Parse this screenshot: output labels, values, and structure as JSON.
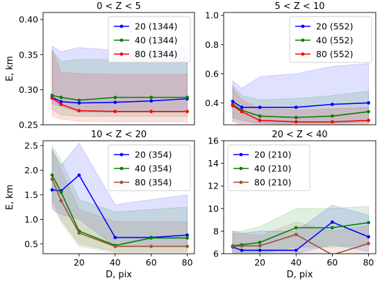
{
  "chart_data": [
    {
      "type": "line",
      "title": "0 < Z < 5",
      "xlabel": "",
      "ylabel": "E, km",
      "xlim": [
        0,
        84
      ],
      "ylim": [
        0.25,
        0.41
      ],
      "xticks": [],
      "xtick_labels": [],
      "yticks": [
        0.25,
        0.3,
        0.35,
        0.4
      ],
      "ytick_labels": [
        "0.25",
        "0.30",
        "0.35",
        "0.40"
      ],
      "grid": false,
      "legend_position": "top-right",
      "x": [
        5,
        10,
        20,
        40,
        60,
        80
      ],
      "series": [
        {
          "name": "20 (1344)",
          "color": "#0000ff",
          "values": [
            0.289,
            0.283,
            0.281,
            0.282,
            0.284,
            0.287
          ],
          "band_low": [
            0.28,
            0.276,
            0.268,
            0.268,
            0.268,
            0.268
          ],
          "band_high": [
            0.362,
            0.354,
            0.36,
            0.356,
            0.357,
            0.36
          ]
        },
        {
          "name": "40 (1344)",
          "color": "#008000",
          "values": [
            0.292,
            0.289,
            0.285,
            0.289,
            0.289,
            0.289
          ],
          "band_low": [
            0.272,
            0.264,
            0.262,
            0.262,
            0.262,
            0.262
          ],
          "band_high": [
            0.356,
            0.34,
            0.343,
            0.343,
            0.343,
            0.345
          ]
        },
        {
          "name": "80 (1344)",
          "color": "#ff0000",
          "values": [
            0.288,
            0.279,
            0.27,
            0.269,
            0.269,
            0.269
          ],
          "band_low": [
            0.262,
            0.258,
            0.255,
            0.254,
            0.254,
            0.254
          ],
          "band_high": [
            0.356,
            0.325,
            0.323,
            0.322,
            0.322,
            0.322
          ]
        }
      ]
    },
    {
      "type": "line",
      "title": "5 < Z < 10",
      "xlabel": "",
      "ylabel": "",
      "xlim": [
        0,
        84
      ],
      "ylim": [
        0.25,
        1.02
      ],
      "xticks": [],
      "xtick_labels": [],
      "yticks": [
        0.4,
        0.6,
        0.8,
        1.0
      ],
      "ytick_labels": [
        "0.4",
        "0.6",
        "0.8",
        "1.0"
      ],
      "grid": false,
      "legend_position": "top-right",
      "x": [
        5,
        10,
        20,
        40,
        60,
        80
      ],
      "series": [
        {
          "name": "20 (552)",
          "color": "#0000ff",
          "values": [
            0.41,
            0.37,
            0.37,
            0.37,
            0.39,
            0.4
          ],
          "band_low": [
            0.3,
            0.28,
            0.26,
            0.26,
            0.26,
            0.27
          ],
          "band_high": [
            0.55,
            0.5,
            0.58,
            0.6,
            0.65,
            0.67
          ]
        },
        {
          "name": "40 (552)",
          "color": "#008000",
          "values": [
            0.39,
            0.35,
            0.31,
            0.3,
            0.31,
            0.34
          ],
          "band_low": [
            0.28,
            0.26,
            0.26,
            0.25,
            0.25,
            0.25
          ],
          "band_high": [
            0.52,
            0.45,
            0.42,
            0.43,
            0.45,
            0.48
          ]
        },
        {
          "name": "80 (552)",
          "color": "#ff0000",
          "values": [
            0.38,
            0.34,
            0.28,
            0.27,
            0.27,
            0.28
          ],
          "band_low": [
            0.27,
            0.25,
            0.24,
            0.24,
            0.24,
            0.24
          ],
          "band_high": [
            0.5,
            0.42,
            0.36,
            0.35,
            0.36,
            0.37
          ]
        }
      ]
    },
    {
      "type": "line",
      "title": "10 < Z < 20",
      "xlabel": "D, pix",
      "ylabel": "E, km",
      "xlim": [
        0,
        84
      ],
      "ylim": [
        0.3,
        2.6
      ],
      "xticks": [
        20,
        40,
        60,
        80
      ],
      "xtick_labels": [
        "20",
        "40",
        "60",
        "80"
      ],
      "yticks": [
        0.5,
        1.0,
        1.5,
        2.0,
        2.5
      ],
      "ytick_labels": [
        "0.5",
        "1.0",
        "1.5",
        "2.0",
        "2.5"
      ],
      "grid": false,
      "legend_position": "top-right",
      "x": [
        5,
        10,
        20,
        40,
        60,
        80
      ],
      "series": [
        {
          "name": "20 (354)",
          "color": "#0000ff",
          "values": [
            1.6,
            1.58,
            1.9,
            0.63,
            0.63,
            0.68
          ],
          "band_low": [
            1.2,
            1.1,
            1.0,
            0.45,
            0.45,
            0.45
          ],
          "band_high": [
            2.4,
            2.1,
            2.55,
            1.3,
            1.4,
            1.5
          ]
        },
        {
          "name": "40 (354)",
          "color": "#008000",
          "values": [
            1.9,
            1.55,
            0.76,
            0.47,
            0.62,
            0.62
          ],
          "band_low": [
            1.4,
            1.0,
            0.5,
            0.35,
            0.35,
            0.35
          ],
          "band_high": [
            2.5,
            2.2,
            1.4,
            1.15,
            1.2,
            1.25
          ]
        },
        {
          "name": "80 (354)",
          "color": "#a0522d",
          "values": [
            1.82,
            1.38,
            0.72,
            0.45,
            0.45,
            0.45
          ],
          "band_low": [
            1.3,
            0.95,
            0.45,
            0.32,
            0.32,
            0.32
          ],
          "band_high": [
            2.45,
            2.0,
            1.2,
            0.95,
            0.95,
            0.95
          ]
        }
      ]
    },
    {
      "type": "line",
      "title": "20 < Z < 40",
      "xlabel": "D, pix",
      "ylabel": "",
      "xlim": [
        0,
        84
      ],
      "ylim": [
        6,
        16
      ],
      "xticks": [
        20,
        40,
        60,
        80
      ],
      "xtick_labels": [
        "20",
        "40",
        "60",
        "80"
      ],
      "yticks": [
        6,
        8,
        10,
        12,
        14,
        16
      ],
      "ytick_labels": [
        "6",
        "8",
        "10",
        "12",
        "14",
        "16"
      ],
      "grid": false,
      "legend_position": "top-left",
      "x": [
        5,
        10,
        20,
        40,
        60,
        80
      ],
      "series": [
        {
          "name": "20 (210)",
          "color": "#0000ff",
          "values": [
            6.6,
            6.3,
            6.3,
            6.3,
            8.8,
            7.5
          ],
          "band_low": [
            6.0,
            6.0,
            6.0,
            6.0,
            6.8,
            6.2
          ],
          "band_high": [
            8.0,
            7.8,
            8.0,
            8.0,
            10.3,
            9.4
          ]
        },
        {
          "name": "40 (210)",
          "color": "#008000",
          "values": [
            6.7,
            6.8,
            7.0,
            8.3,
            8.3,
            8.75
          ],
          "band_low": [
            6.0,
            6.0,
            6.0,
            6.6,
            6.6,
            6.8
          ],
          "band_high": [
            8.0,
            8.0,
            8.4,
            10.0,
            10.0,
            10.2
          ]
        },
        {
          "name": "80 (210)",
          "color": "#a0522d",
          "values": [
            6.65,
            6.7,
            6.7,
            7.7,
            5.9,
            6.9
          ],
          "band_low": [
            6.0,
            6.0,
            6.0,
            6.0,
            6.0,
            6.0
          ],
          "band_high": [
            7.8,
            7.8,
            7.6,
            8.8,
            8.0,
            8.5
          ]
        }
      ]
    }
  ]
}
